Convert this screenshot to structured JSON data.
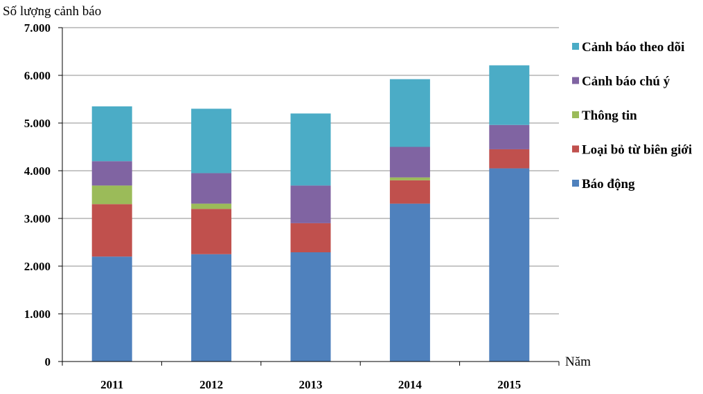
{
  "chart_data": {
    "type": "bar",
    "stacked": true,
    "ylabel": "Số lượng cảnh báo",
    "xlabel": "Năm",
    "categories": [
      "2011",
      "2012",
      "2013",
      "2014",
      "2015"
    ],
    "ylim": [
      0,
      7000
    ],
    "yticks": [
      0,
      1000,
      2000,
      3000,
      4000,
      5000,
      6000,
      7000
    ],
    "ytick_labels": [
      "0",
      "1.000",
      "2.000",
      "3.000",
      "4.000",
      "5.000",
      "6.000",
      "7.000"
    ],
    "grid": true,
    "legend_position": "right",
    "series": [
      {
        "name": "Báo động",
        "color": "#4F81BD",
        "values": [
          2200,
          2250,
          2290,
          3310,
          4050
        ]
      },
      {
        "name": "Loại bỏ từ biên giới",
        "color": "#C0504D",
        "values": [
          1100,
          950,
          610,
          490,
          400
        ]
      },
      {
        "name": "Thông tin",
        "color": "#9BBB59",
        "values": [
          390,
          110,
          0,
          60,
          0
        ]
      },
      {
        "name": "Cảnh báo chú ý",
        "color": "#8064A2",
        "values": [
          510,
          640,
          790,
          640,
          510
        ]
      },
      {
        "name": "Cảnh báo theo dõi",
        "color": "#4BACC6",
        "values": [
          1150,
          1350,
          1510,
          1420,
          1250
        ]
      }
    ]
  }
}
